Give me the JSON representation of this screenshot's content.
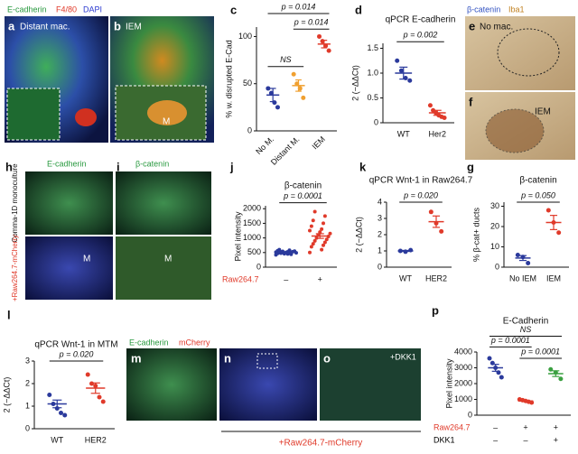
{
  "figure": {
    "row1_stain": [
      "E-cadherin",
      "F4/80",
      "DAPI"
    ],
    "a": {
      "letter": "a",
      "label": "Distant mac."
    },
    "b": {
      "letter": "b",
      "label": "IEM",
      "marker": "M"
    },
    "ef_stain": [
      "β-catenin",
      "Iba1"
    ],
    "e": {
      "letter": "e",
      "label": "No mac."
    },
    "f": {
      "letter": "f",
      "label": "IEM"
    },
    "h": {
      "letter": "h",
      "stain": "E-cadherin",
      "row_top": "Comma-1D monoculture",
      "row_bottom": "+Raw264.7-mCherry",
      "marker": "M"
    },
    "i": {
      "letter": "i",
      "stain": "β-catenin",
      "marker": "M"
    },
    "m": {
      "letter": "m",
      "stain": [
        "E-cadherin",
        "mCherry"
      ]
    },
    "n": {
      "letter": "n"
    },
    "o": {
      "letter": "o",
      "label": "+DKK1"
    },
    "mno_caption": "+Raw264.7-mCherry"
  },
  "chart_data": [
    {
      "type": "dot",
      "letter": "c",
      "ylabel": "% w. disrupted E-Cad",
      "categories": [
        "No M.",
        "Distant M.",
        "IEM"
      ],
      "points": [
        [
          45,
          40,
          30,
          25
        ],
        [
          60,
          50,
          45,
          35
        ],
        [
          100,
          95,
          90,
          85
        ]
      ],
      "means": [
        38,
        48,
        92
      ],
      "errors": [
        7,
        6,
        4
      ],
      "colors": [
        "#2b3a9c",
        "#f0a030",
        "#e03a2a"
      ],
      "ylim": [
        0,
        110
      ],
      "yticks": [
        0,
        50,
        100
      ],
      "annotations": [
        "NS",
        "p = 0.014",
        "p = 0.014"
      ]
    },
    {
      "type": "dot",
      "letter": "d",
      "title": "qPCR E-cadherin",
      "ylabel": "2 (−ΔΔCt)",
      "categories": [
        "WT",
        "Her2"
      ],
      "points": [
        [
          1.25,
          1.05,
          0.9,
          0.85
        ],
        [
          0.35,
          0.25,
          0.2,
          0.15,
          0.12,
          0.1
        ]
      ],
      "means": [
        1.0,
        0.2
      ],
      "errors": [
        0.12,
        0.05
      ],
      "colors": [
        "#2b3a9c",
        "#e03a2a"
      ],
      "ylim": [
        0,
        1.6
      ],
      "yticks": [
        0,
        0.5,
        {
          "value": 1,
          "label": "1.0"
        },
        1.5
      ],
      "annotations": [
        "p = 0.002"
      ]
    },
    {
      "type": "dot",
      "letter": "j",
      "title": "β-catenin",
      "ylabel": "Pixel intensity",
      "points": [
        [
          420,
          450,
          470,
          480,
          500,
          510,
          520,
          530,
          540,
          550,
          460,
          490,
          505,
          515,
          525,
          560,
          580,
          600,
          440,
          480
        ],
        [
          500,
          600,
          700,
          750,
          800,
          850,
          900,
          950,
          1000,
          1050,
          1100,
          1150,
          1200,
          1250,
          1300,
          1400,
          1500,
          1600,
          1750,
          1900
        ]
      ],
      "means": [
        505,
        1065
      ],
      "errors": [
        12,
        80
      ],
      "colors": [
        "#2b3a9c",
        "#e03a2a"
      ],
      "ylim": [
        0,
        2100
      ],
      "yticks": [
        0,
        500,
        1000,
        1500,
        2000
      ],
      "annotations": [
        "p = 0.0001"
      ],
      "condition_rows": [
        {
          "name": "Raw264.7",
          "color": "#e03a2a",
          "values": [
            "–",
            "+"
          ]
        }
      ]
    },
    {
      "type": "dot",
      "letter": "k",
      "title": "qPCR Wnt-1 in Raw264.7",
      "ylabel": "2 (−ΔΔCt)",
      "categories": [
        "WT",
        "HER2"
      ],
      "points": [
        [
          1.0,
          0.95,
          1.05
        ],
        [
          3.4,
          2.7,
          2.2
        ]
      ],
      "means": [
        1.0,
        2.8
      ],
      "errors": [
        0.03,
        0.35
      ],
      "colors": [
        "#2b3a9c",
        "#e03a2a"
      ],
      "ylim": [
        0,
        4
      ],
      "yticks": [
        0,
        1,
        2,
        3,
        4
      ],
      "annotations": [
        "p = 0.020"
      ]
    },
    {
      "type": "dot",
      "letter": "g",
      "title": "β-catenin",
      "ylabel": "% β-cat+ ducts",
      "categories": [
        "No IEM",
        "IEM"
      ],
      "points": [
        [
          6,
          5,
          2
        ],
        [
          28,
          22,
          17
        ]
      ],
      "means": [
        4.5,
        22
      ],
      "errors": [
        1.2,
        3.5
      ],
      "colors": [
        "#2b3a9c",
        "#e03a2a"
      ],
      "ylim": [
        0,
        32
      ],
      "yticks": [
        0,
        10,
        20,
        30
      ],
      "annotations": [
        "p = 0.050"
      ]
    },
    {
      "type": "dot",
      "letter": "l",
      "title": "qPCR Wnt-1 in MTM",
      "ylabel": "2 (−ΔΔCt)",
      "categories": [
        "WT",
        "HER2"
      ],
      "points": [
        [
          1.5,
          1.1,
          0.9,
          0.7,
          0.6
        ],
        [
          2.4,
          2.0,
          1.9,
          1.4,
          1.2
        ]
      ],
      "means": [
        1.1,
        1.8
      ],
      "errors": [
        0.17,
        0.23
      ],
      "colors": [
        "#2b3a9c",
        "#e03a2a"
      ],
      "ylim": [
        0,
        3
      ],
      "yticks": [
        0,
        1,
        2,
        3
      ],
      "annotations": [
        "p = 0.020"
      ]
    },
    {
      "type": "dot",
      "letter": "p",
      "title": "E-Cadherin",
      "ylabel": "Pixel intensity",
      "points": [
        [
          3600,
          3300,
          3000,
          2700,
          2400
        ],
        [
          1000,
          950,
          900,
          850,
          800
        ],
        [
          2900,
          2700,
          2300
        ]
      ],
      "means": [
        3000,
        900,
        2630
      ],
      "errors": [
        220,
        40,
        180
      ],
      "colors": [
        "#2b3a9c",
        "#e03a2a",
        "#3aa040"
      ],
      "ylim": [
        0,
        4000
      ],
      "yticks": [
        0,
        1000,
        2000,
        3000,
        4000
      ],
      "annotations": [
        "NS",
        "p = 0.0001",
        "p = 0.0001"
      ],
      "condition_rows": [
        {
          "name": "Raw264.7",
          "color": "#e03a2a",
          "values": [
            "–",
            "+",
            "+"
          ]
        },
        {
          "name": "DKK1",
          "color": "#000000",
          "values": [
            "–",
            "–",
            "+"
          ]
        }
      ]
    }
  ]
}
